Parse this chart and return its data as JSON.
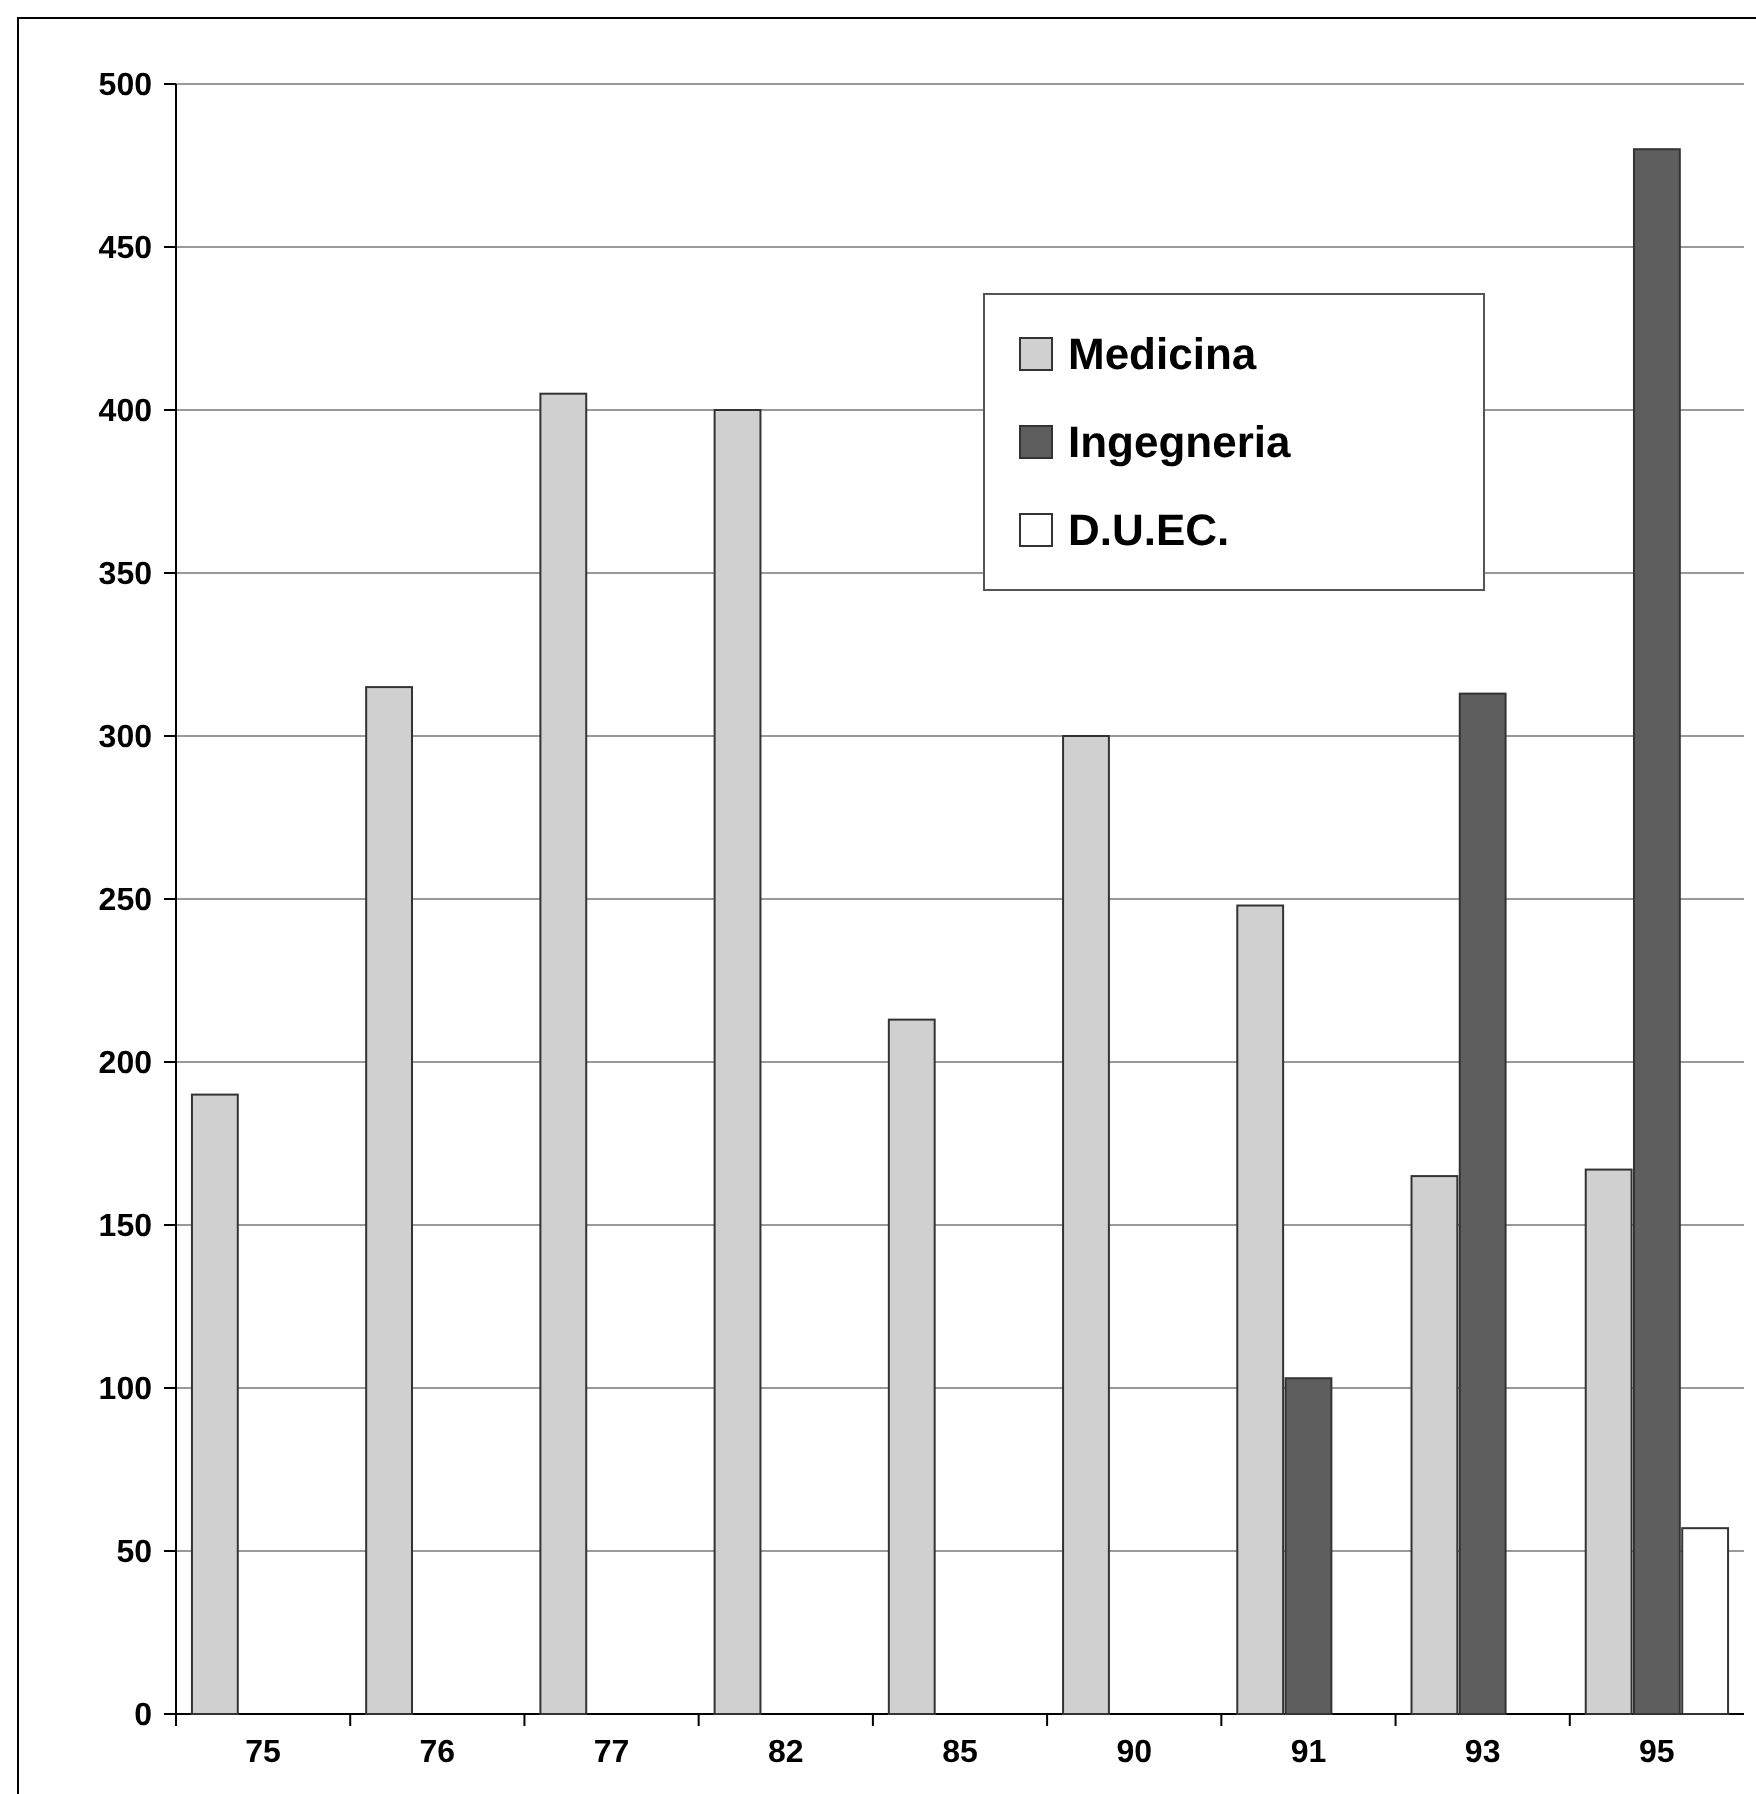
{
  "chart_data": {
    "type": "bar",
    "categories": [
      "75",
      "76",
      "77",
      "82",
      "85",
      "90",
      "91",
      "93",
      "95"
    ],
    "series": [
      {
        "name": "Medicina",
        "color": "#d0d0d0",
        "values": [
          190,
          315,
          405,
          400,
          213,
          300,
          248,
          165,
          167
        ]
      },
      {
        "name": "Ingegneria",
        "color": "#5e5e5e",
        "values": [
          null,
          null,
          null,
          null,
          null,
          null,
          103,
          313,
          480
        ]
      },
      {
        "name": "D.U.EC.",
        "color": "#ffffff",
        "values": [
          null,
          null,
          null,
          null,
          null,
          null,
          null,
          null,
          57
        ]
      }
    ],
    "ylim": [
      0,
      500
    ],
    "yticks": [
      0,
      50,
      100,
      150,
      200,
      250,
      300,
      350,
      400,
      450,
      500
    ],
    "grid": "y",
    "legend": "top right"
  }
}
